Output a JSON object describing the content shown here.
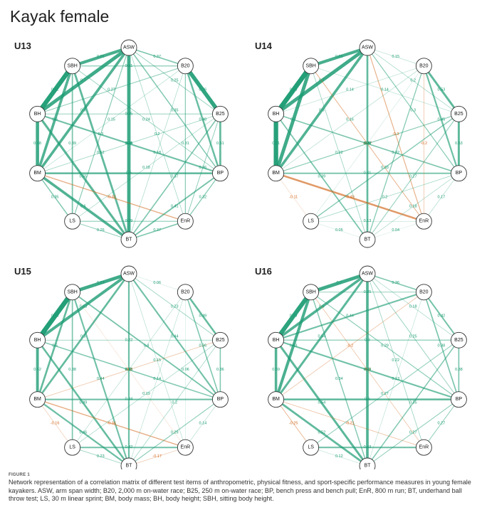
{
  "figure": {
    "title": "Kayak female",
    "caption_head": "FIGURE 1",
    "caption": "Network representation of a correlation matrix of different test items of anthropometric, physical fitness, and sport-specific performance measures in young female kayakers. ASW, arm span width; B20, 2,000 m on-water race; B25, 250 m on-water race; BP, bench press and bench pull; EnR, 800 m run; BT, underhand ball throw test; LS, 30 m linear sprint; BM, body mass; BH, body height; SBH, sitting body height."
  },
  "colors": {
    "positive": "#1a9b72",
    "negative": "#d2691e",
    "node_stroke": "#333333"
  },
  "nodes": [
    "ASW",
    "B20",
    "B25",
    "BP",
    "EnR",
    "BT",
    "LS",
    "BM",
    "BH",
    "SBH"
  ],
  "panels": [
    {
      "label": "U13",
      "edges": [
        [
          "ASW",
          "SBH",
          0.65
        ],
        [
          "ASW",
          "BH",
          0.7
        ],
        [
          "ASW",
          "BM",
          0.6
        ],
        [
          "ASW",
          "BT",
          0.7
        ],
        [
          "ASW",
          "B20",
          0.37
        ],
        [
          "ASW",
          "B25",
          0.25
        ],
        [
          "ASW",
          "BP",
          0.35
        ],
        [
          "ASW",
          "EnR",
          0.2
        ],
        [
          "ASW",
          "LS",
          0.3
        ],
        [
          "SBH",
          "BH",
          0.81
        ],
        [
          "SBH",
          "BM",
          0.6
        ],
        [
          "SBH",
          "BT",
          0.52
        ],
        [
          "SBH",
          "B20",
          0.31
        ],
        [
          "SBH",
          "LS",
          0.39
        ],
        [
          "SBH",
          "BP",
          0.24
        ],
        [
          "BH",
          "BM",
          0.68
        ],
        [
          "BH",
          "BT",
          0.55
        ],
        [
          "BH",
          "BP",
          0.44
        ],
        [
          "BH",
          "B20",
          0.27
        ],
        [
          "BH",
          "B25",
          0.25
        ],
        [
          "BM",
          "BP",
          0.5
        ],
        [
          "BM",
          "BT",
          0.6
        ],
        [
          "BM",
          "LS",
          0.35
        ],
        [
          "BM",
          "EnR",
          -0.33
        ],
        [
          "BM",
          "B25",
          0.21
        ],
        [
          "BM",
          "B20",
          0.15
        ],
        [
          "LS",
          "BT",
          0.26
        ],
        [
          "LS",
          "EnR",
          0.29
        ],
        [
          "BT",
          "EnR",
          0.37
        ],
        [
          "BT",
          "B20",
          0.18
        ],
        [
          "BT",
          "BP",
          0.41
        ],
        [
          "BT",
          "B25",
          0.37
        ],
        [
          "EnR",
          "B25",
          0.26
        ],
        [
          "EnR",
          "BP",
          0.32
        ],
        [
          "B20",
          "B25",
          0.76
        ],
        [
          "B20",
          "BP",
          0.48
        ],
        [
          "B25",
          "BP",
          0.51
        ],
        [
          "EnR",
          "B20",
          0.31
        ],
        [
          "LS",
          "B25",
          0.18
        ]
      ]
    },
    {
      "label": "U14",
      "edges": [
        [
          "ASW",
          "SBH",
          0.65
        ],
        [
          "ASW",
          "BH",
          0.7
        ],
        [
          "ASW",
          "BM",
          0.6
        ],
        [
          "ASW",
          "BT",
          0.5
        ],
        [
          "ASW",
          "B20",
          0.15
        ],
        [
          "ASW",
          "B25",
          0.2
        ],
        [
          "ASW",
          "BP",
          0.3
        ],
        [
          "ASW",
          "EnR",
          -0.3
        ],
        [
          "SBH",
          "BH",
          0.83
        ],
        [
          "SBH",
          "BM",
          0.7
        ],
        [
          "SBH",
          "BT",
          0.22
        ],
        [
          "SBH",
          "B25",
          0.14
        ],
        [
          "SBH",
          "EnR",
          -0.27
        ],
        [
          "BH",
          "BM",
          0.81
        ],
        [
          "BH",
          "BT",
          0.39
        ],
        [
          "BH",
          "BP",
          0.37
        ],
        [
          "BH",
          "B20",
          0.14
        ],
        [
          "BM",
          "BP",
          0.41
        ],
        [
          "BM",
          "EnR",
          -0.49
        ],
        [
          "BM",
          "B20",
          0.16
        ],
        [
          "BM",
          "LS",
          -0.11
        ],
        [
          "BM",
          "B25",
          0.29
        ],
        [
          "LS",
          "BT",
          0.05
        ],
        [
          "LS",
          "EnR",
          0.13
        ],
        [
          "LS",
          "B20",
          0.1
        ],
        [
          "BT",
          "B25",
          0.27
        ],
        [
          "BT",
          "BP",
          0.18
        ],
        [
          "BT",
          "EnR",
          0.04
        ],
        [
          "BT",
          "B20",
          0.32
        ],
        [
          "EnR",
          "BP",
          0.17
        ],
        [
          "EnR",
          "B20",
          -0.2
        ],
        [
          "B20",
          "B25",
          0.53
        ],
        [
          "B20",
          "BP",
          0.45
        ],
        [
          "B25",
          "BP",
          0.53
        ],
        [
          "B25",
          "LS",
          0.33
        ],
        [
          "BP",
          "LS",
          0.2
        ]
      ]
    },
    {
      "label": "U15",
      "edges": [
        [
          "ASW",
          "SBH",
          0.69
        ],
        [
          "ASW",
          "BH",
          0.63
        ],
        [
          "ASW",
          "BM",
          0.5
        ],
        [
          "ASW",
          "BT",
          0.45
        ],
        [
          "ASW",
          "B20",
          0.06
        ],
        [
          "ASW",
          "B25",
          0.23
        ],
        [
          "ASW",
          "BP",
          0.44
        ],
        [
          "ASW",
          "EnR",
          0.15
        ],
        [
          "SBH",
          "BH",
          0.83
        ],
        [
          "SBH",
          "BM",
          0.5
        ],
        [
          "SBH",
          "BT",
          0.44
        ],
        [
          "SBH",
          "BP",
          0.4
        ],
        [
          "SBH",
          "LS",
          0.38
        ],
        [
          "SBH",
          "EnR",
          -0.1
        ],
        [
          "BH",
          "BM",
          0.62
        ],
        [
          "BH",
          "BT",
          0.49
        ],
        [
          "BH",
          "BP",
          0.35
        ],
        [
          "BH",
          "B25",
          0.22
        ],
        [
          "BM",
          "BP",
          0.44
        ],
        [
          "BM",
          "EnR",
          -0.34
        ],
        [
          "BM",
          "LS",
          -0.16
        ],
        [
          "BM",
          "BT",
          0.46
        ],
        [
          "LS",
          "BT",
          0.23
        ],
        [
          "LS",
          "EnR",
          0.42
        ],
        [
          "LS",
          "B25",
          0.19
        ],
        [
          "BT",
          "EnR",
          -0.17
        ],
        [
          "BT",
          "B20",
          0.14
        ],
        [
          "BT",
          "BP",
          0.29
        ],
        [
          "BT",
          "B25",
          0.2
        ],
        [
          "EnR",
          "BP",
          0.14
        ],
        [
          "EnR",
          "B20",
          0.06
        ],
        [
          "B20",
          "B25",
          0.49
        ],
        [
          "B20",
          "BP",
          0.36
        ],
        [
          "B25",
          "BP",
          0.36
        ],
        [
          "BM",
          "B25",
          -0.2
        ],
        [
          "B20",
          "LS",
          0.15
        ]
      ]
    },
    {
      "label": "U16",
      "edges": [
        [
          "ASW",
          "SBH",
          0.7
        ],
        [
          "ASW",
          "BH",
          0.6
        ],
        [
          "ASW",
          "BM",
          0.54
        ],
        [
          "ASW",
          "BT",
          0.6
        ],
        [
          "ASW",
          "B20",
          0.36
        ],
        [
          "ASW",
          "B25",
          0.18
        ],
        [
          "ASW",
          "BP",
          0.25
        ],
        [
          "ASW",
          "EnR",
          0.22
        ],
        [
          "SBH",
          "BH",
          0.79
        ],
        [
          "SBH",
          "BM",
          0.63
        ],
        [
          "SBH",
          "BT",
          0.34
        ],
        [
          "SBH",
          "BP",
          0.29
        ],
        [
          "SBH",
          "B20",
          0.25
        ],
        [
          "SBH",
          "EnR",
          -0.2
        ],
        [
          "BH",
          "BM",
          0.59
        ],
        [
          "BH",
          "BT",
          0.54
        ],
        [
          "BH",
          "BP",
          0.44
        ],
        [
          "BH",
          "B25",
          0.3
        ],
        [
          "BM",
          "BP",
          0.5
        ],
        [
          "BM",
          "BT",
          0.52
        ],
        [
          "BM",
          "EnR",
          -0.21
        ],
        [
          "BM",
          "LS",
          -0.25
        ],
        [
          "LS",
          "BT",
          0.12
        ],
        [
          "LS",
          "EnR",
          0.43
        ],
        [
          "LS",
          "B25",
          0.27
        ],
        [
          "BT",
          "B20",
          0.13
        ],
        [
          "BT",
          "BP",
          0.27
        ],
        [
          "BT",
          "B25",
          0.35
        ],
        [
          "EnR",
          "BP",
          0.27
        ],
        [
          "B20",
          "B25",
          0.42
        ],
        [
          "B20",
          "BP",
          0.38
        ],
        [
          "B25",
          "BP",
          0.38
        ],
        [
          "BH",
          "B20",
          0.44
        ],
        [
          "BM",
          "B20",
          -0.2
        ]
      ]
    }
  ]
}
